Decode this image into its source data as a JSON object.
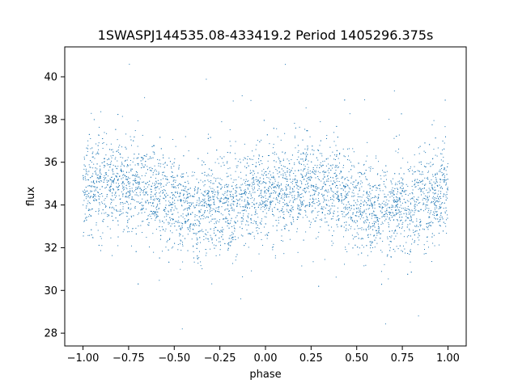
{
  "chart_data": {
    "type": "scatter",
    "title": "1SWASPJ144535.08-433419.2 Period 1405296.375s",
    "xlabel": "phase",
    "ylabel": "flux",
    "xlim": [
      -1.1,
      1.1
    ],
    "ylim": [
      27.4,
      41.4
    ],
    "xticks": [
      -1.0,
      -0.75,
      -0.5,
      -0.25,
      0.0,
      0.25,
      0.5,
      0.75,
      1.0
    ],
    "xtick_labels": [
      "−1.00",
      "−0.75",
      "−0.50",
      "−0.25",
      "0.00",
      "0.25",
      "0.50",
      "0.75",
      "1.00"
    ],
    "yticks": [
      28,
      30,
      32,
      34,
      36,
      38,
      40
    ],
    "ytick_labels": [
      "28",
      "30",
      "32",
      "34",
      "36",
      "38",
      "40"
    ],
    "point_color": "#1f77b4",
    "grid": false,
    "legend": "none",
    "series": [
      {
        "x": [
          -1.0,
          -0.95,
          -0.9,
          -0.85,
          -0.8,
          -0.75,
          -0.7,
          -0.65,
          -0.6,
          -0.55,
          -0.5,
          -0.45,
          -0.4,
          -0.35,
          -0.3,
          -0.25,
          -0.2,
          -0.15,
          -0.1,
          -0.05,
          0.0,
          0.05,
          0.1,
          0.15,
          0.2,
          0.25,
          0.3,
          0.35,
          0.4,
          0.45,
          0.5,
          0.55,
          0.6,
          0.65,
          0.7,
          0.75,
          0.8,
          0.85,
          0.9,
          0.95,
          1.0
        ],
        "y": [
          34.6,
          34.9,
          34.8,
          34.7,
          35.1,
          34.8,
          35.0,
          34.7,
          34.6,
          34.3,
          34.2,
          33.8,
          33.6,
          33.7,
          33.8,
          34.0,
          34.0,
          34.1,
          34.2,
          34.6,
          34.7,
          34.7,
          34.4,
          34.6,
          34.9,
          34.8,
          35.0,
          34.7,
          34.6,
          34.3,
          34.2,
          33.9,
          33.6,
          33.7,
          33.8,
          34.0,
          34.0,
          34.1,
          34.2,
          34.5,
          34.6
        ]
      }
    ]
  }
}
